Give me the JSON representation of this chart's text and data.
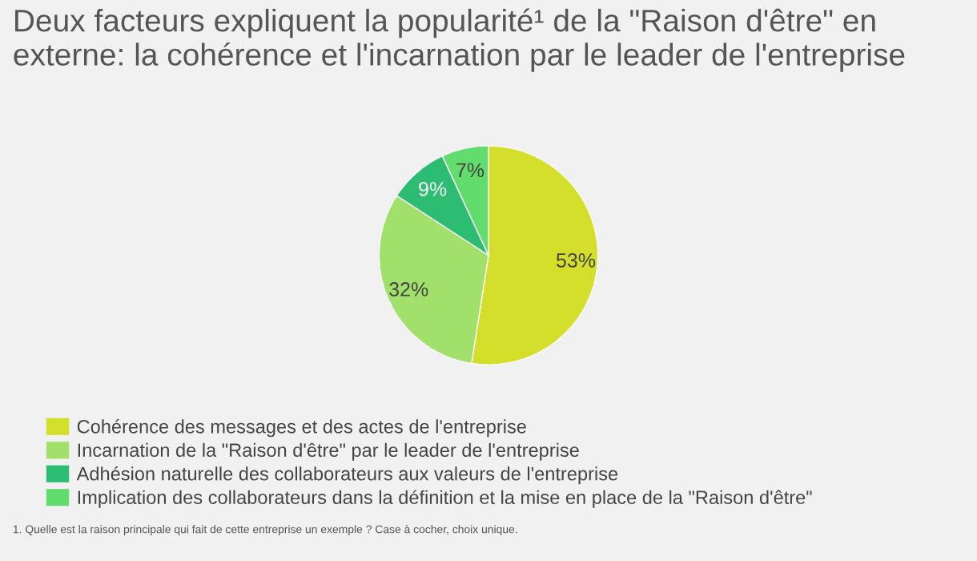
{
  "chart_data": {
    "type": "pie",
    "title": "Deux facteurs expliquent la popularité¹ de la \"Raison d'être\" en externe: la cohérence et l'incarnation par le leader de l'entreprise",
    "categories": [
      "Cohérence des messages et des actes de l'entreprise",
      "Incarnation de la \"Raison d'être\" par le leader de l'entreprise",
      "Adhésion naturelle des collaborateurs aux valeurs de l'entreprise",
      "Implication des collaborateurs dans la définition et la mise en place de la \"Raison d'être\""
    ],
    "values": [
      53,
      32,
      9,
      7
    ],
    "colors": [
      "#d4df2c",
      "#a2e06c",
      "#2dbd72",
      "#62dc6c"
    ],
    "value_labels": [
      "53%",
      "32%",
      "9%",
      "7%"
    ],
    "legend": "bottom left",
    "annotations": [
      "1. Quelle est la raison principale qui fait de cette entreprise un exemple ? Case à cocher, choix unique."
    ]
  }
}
